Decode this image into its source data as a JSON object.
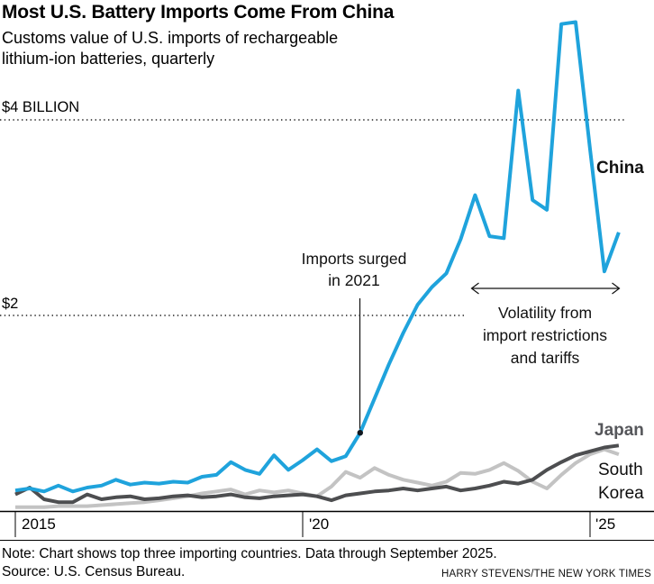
{
  "header": {
    "title": "Most U.S. Battery Imports Come From China",
    "subtitle": "Customs value of U.S. imports of rechargeable\nlithium-ion batteries, quarterly"
  },
  "axis": {
    "gridline_labels": [
      "$4 BILLION",
      "$2"
    ],
    "x_tick_labels": [
      "2015",
      "'20",
      "'25"
    ]
  },
  "series_labels": {
    "china": "China",
    "japan": "Japan",
    "south_korea": "South\nKorea"
  },
  "annotations": {
    "surge": "Imports surged\nin 2021",
    "volatility": "Volatility from\nimport restrictions\nand tariffs"
  },
  "footer": {
    "note": "Note: Chart shows top three importing countries. Data through September 2025.",
    "source": "Source: U.S. Census Bureau.",
    "credit": "HARRY STEVENS/THE NEW YORK TIMES"
  },
  "chart_data": {
    "type": "line",
    "title": "Most U.S. Battery Imports Come From China",
    "subtitle": "Customs value of U.S. imports of rechargeable lithium-ion batteries, quarterly",
    "unit": "billions of U.S. dollars",
    "x_start": "Q1 2015",
    "x_end": "Q3 2025",
    "x_frequency": "quarterly",
    "ylim": [
      0,
      5.1
    ],
    "grid": "horizontal dotted",
    "gridlines": [
      {
        "label": "$4 BILLION",
        "value": 4
      },
      {
        "label": "$2",
        "value": 2
      }
    ],
    "x_ticks": [
      {
        "label": "2015",
        "index": 0
      },
      {
        "label": "'20",
        "index": 20
      },
      {
        "label": "'25",
        "index": 40
      }
    ],
    "series": [
      {
        "name": "China",
        "color": "#1fa3dc",
        "values": [
          0.21,
          0.23,
          0.2,
          0.26,
          0.2,
          0.24,
          0.26,
          0.32,
          0.27,
          0.29,
          0.28,
          0.3,
          0.29,
          0.35,
          0.37,
          0.5,
          0.42,
          0.38,
          0.57,
          0.42,
          0.52,
          0.63,
          0.51,
          0.56,
          0.8,
          1.15,
          1.5,
          1.82,
          2.11,
          2.29,
          2.43,
          2.78,
          3.23,
          2.81,
          2.79,
          4.3,
          3.18,
          3.08,
          4.98,
          5.0,
          3.7,
          2.45,
          2.85
        ]
      },
      {
        "name": "Japan",
        "color": "#4d4e50",
        "values": [
          0.17,
          0.24,
          0.12,
          0.09,
          0.09,
          0.17,
          0.12,
          0.14,
          0.15,
          0.12,
          0.13,
          0.15,
          0.16,
          0.14,
          0.15,
          0.17,
          0.14,
          0.13,
          0.15,
          0.16,
          0.17,
          0.15,
          0.11,
          0.16,
          0.18,
          0.2,
          0.21,
          0.23,
          0.21,
          0.23,
          0.25,
          0.21,
          0.23,
          0.26,
          0.3,
          0.28,
          0.32,
          0.42,
          0.5,
          0.57,
          0.61,
          0.65,
          0.67
        ]
      },
      {
        "name": "South Korea",
        "color": "#c3c3c3",
        "values": [
          0.04,
          0.04,
          0.04,
          0.05,
          0.05,
          0.05,
          0.06,
          0.07,
          0.08,
          0.09,
          0.11,
          0.13,
          0.15,
          0.18,
          0.2,
          0.22,
          0.17,
          0.21,
          0.19,
          0.21,
          0.18,
          0.15,
          0.25,
          0.4,
          0.34,
          0.44,
          0.37,
          0.32,
          0.29,
          0.26,
          0.3,
          0.39,
          0.38,
          0.42,
          0.49,
          0.41,
          0.3,
          0.23,
          0.37,
          0.49,
          0.58,
          0.63,
          0.58
        ]
      }
    ],
    "annotations": {
      "surge_marker": {
        "series": "China",
        "index": 24,
        "label": "Imports surged in 2021",
        "value": 0.8
      },
      "volatility_range": {
        "label": "Volatility from import restrictions and tariffs",
        "from_index": 31,
        "to_index": 42
      }
    }
  }
}
